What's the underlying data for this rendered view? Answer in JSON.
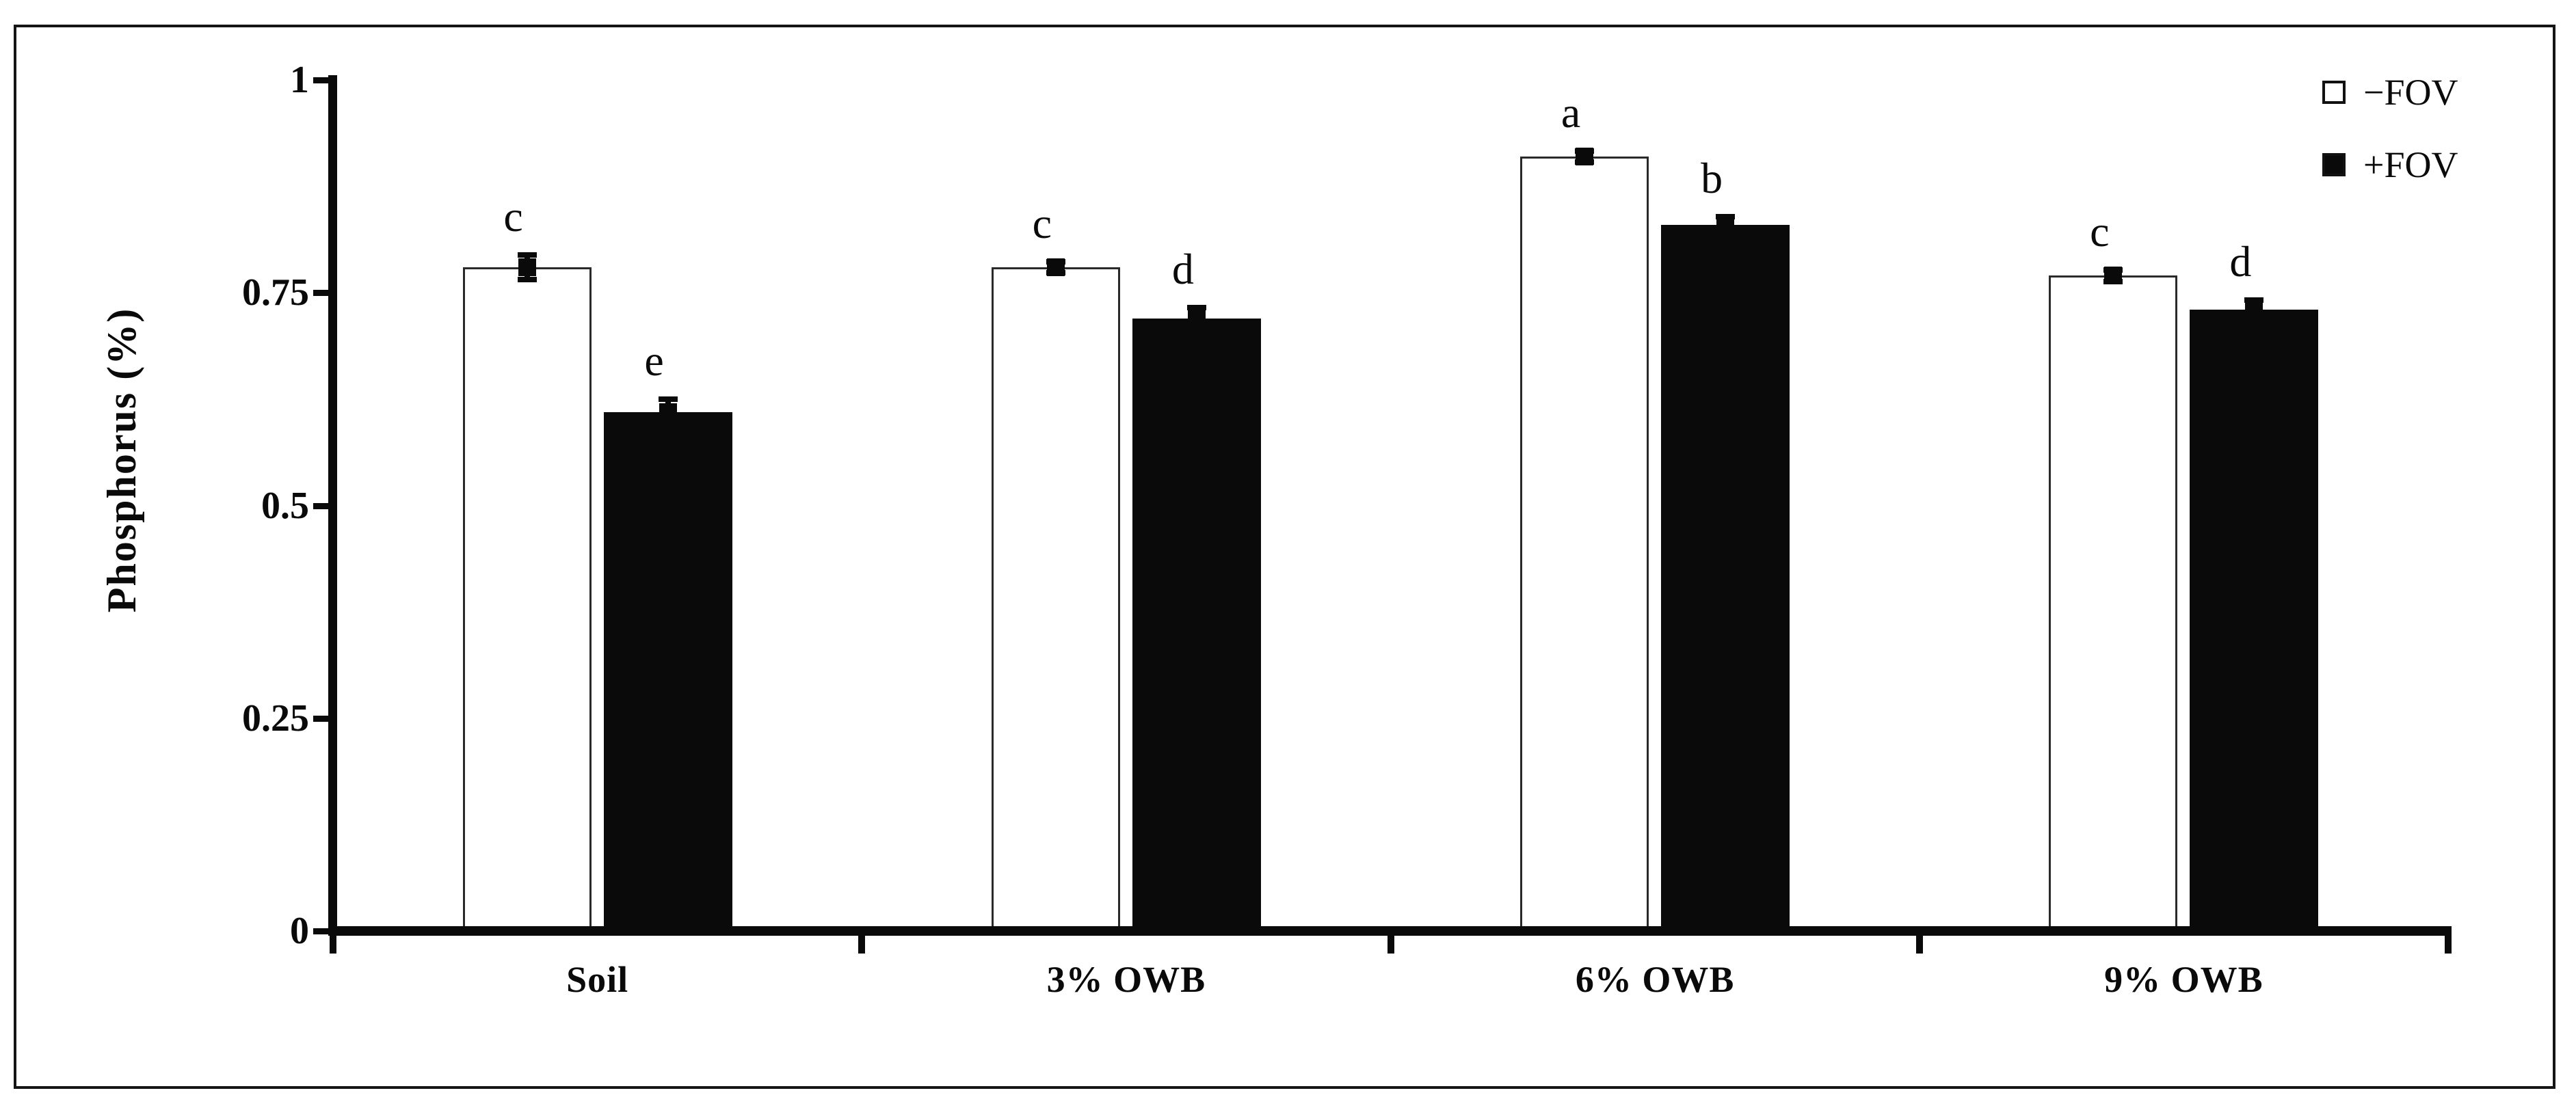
{
  "chart_data": {
    "type": "bar",
    "title": "",
    "xlabel": "",
    "ylabel": "Phosphorus (%)",
    "ylim": [
      0,
      1
    ],
    "grid": false,
    "error_bars": true,
    "yticks": [
      {
        "label": "0",
        "value": 0
      },
      {
        "label": "0.25",
        "value": 0.25
      },
      {
        "label": "0.5",
        "value": 0.5
      },
      {
        "label": "0.75",
        "value": 0.75
      },
      {
        "label": "1",
        "value": 1
      }
    ],
    "categories": [
      "Soil",
      "3% OWB",
      "6% OWB",
      "9% OWB"
    ],
    "series": [
      {
        "name": "−FOV",
        "fill": "#ffffff",
        "values": [
          0.78,
          0.78,
          0.91,
          0.77
        ],
        "errors": [
          0.013,
          0.005,
          0.005,
          0.005
        ],
        "letters": [
          "c",
          "c",
          "a",
          "c"
        ]
      },
      {
        "name": "+FOV",
        "fill": "#0a0a0a",
        "values": [
          0.61,
          0.72,
          0.83,
          0.73
        ],
        "errors": [
          0.013,
          0.011,
          0.008,
          0.01
        ],
        "letters": [
          "e",
          "d",
          "b",
          "d"
        ]
      }
    ],
    "legend": {
      "position": "top-right",
      "entries": [
        {
          "label": "−FOV",
          "fill": "#ffffff"
        },
        {
          "label": "+FOV",
          "fill": "#0a0a0a"
        }
      ]
    },
    "colors": {
      "foreground": "#0a0a0a",
      "background": "#ffffff"
    }
  }
}
